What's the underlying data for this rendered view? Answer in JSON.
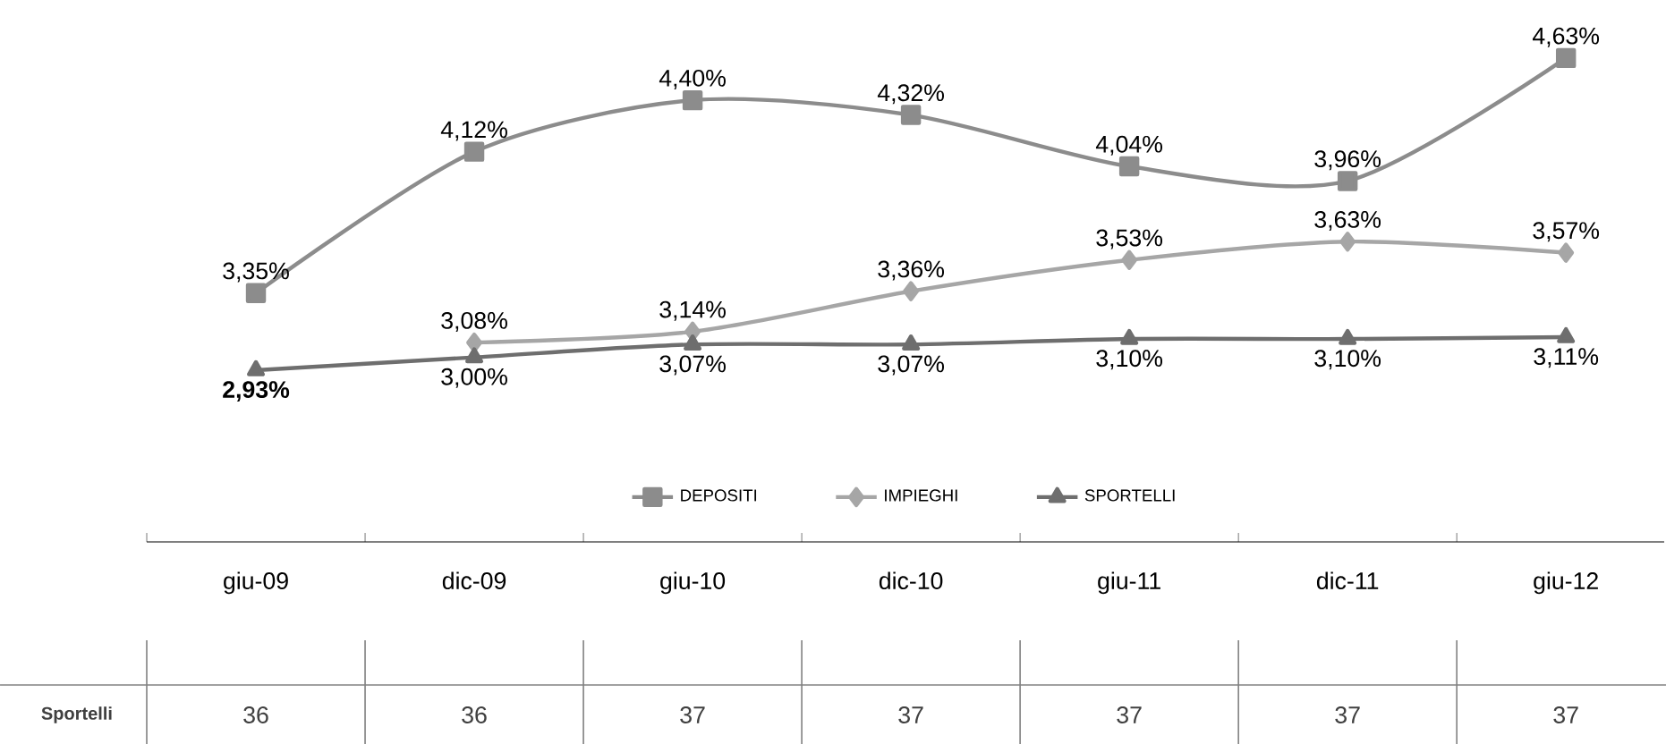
{
  "chart_data": [
    {
      "type": "line",
      "categories": [
        "giu-09",
        "dic-09",
        "giu-10",
        "dic-10",
        "giu-11",
        "dic-11",
        "giu-12"
      ],
      "legend": "bottom",
      "series": [
        {
          "name": "DEPOSITI",
          "color": "#8c8c8c",
          "marker": "square",
          "values": [
            3.35,
            4.12,
            4.4,
            4.32,
            4.04,
            3.96,
            4.63
          ],
          "value_labels": [
            "3,35%",
            "4,12%",
            "4,40%",
            "4,32%",
            "4,04%",
            "3,96%",
            "4,63%"
          ]
        },
        {
          "name": "IMPIEGHI",
          "color": "#a6a6a6",
          "marker": "diamond",
          "values": [
            null,
            3.08,
            3.14,
            3.36,
            3.53,
            3.63,
            3.57
          ],
          "value_labels": [
            null,
            "3,08%",
            "3,14%",
            "3,36%",
            "3,53%",
            "3,63%",
            "3,57%"
          ]
        },
        {
          "name": "SPORTELLI",
          "color": "#6e6e6e",
          "marker": "triangle",
          "values": [
            2.93,
            3.0,
            3.07,
            3.07,
            3.1,
            3.1,
            3.11
          ],
          "value_labels": [
            "**2,93%**",
            "3,00%",
            "3,07%",
            "3,07%",
            "3,10%",
            "3,10%",
            "3,11%"
          ]
        }
      ]
    },
    {
      "type": "other",
      "ylabel": "Sportelli",
      "values": [
        36,
        36,
        37,
        37,
        37,
        37,
        37
      ],
      "data_labels": true
    }
  ]
}
